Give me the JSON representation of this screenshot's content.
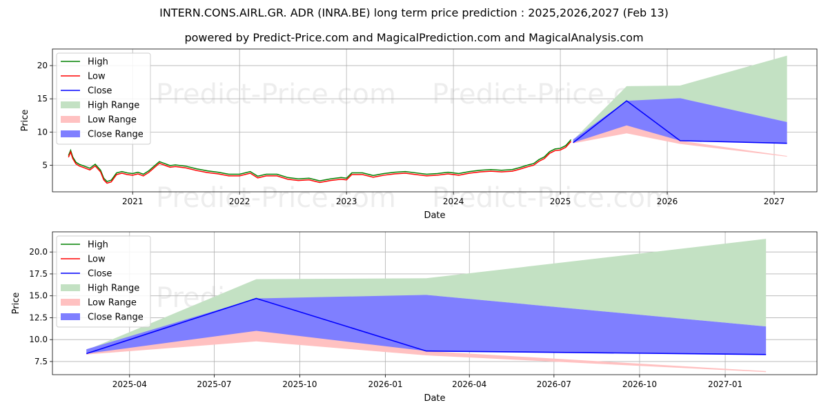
{
  "title": "INTERN.CONS.AIRL.GR. ADR (INRA.BE) long term price prediction : 2025,2026,2027 (Feb 13)",
  "subtitle": "powered by Predict-Price.com and MagicalPrediction.com and MagicalAnalysis.com",
  "watermark": "Predict-Price.com",
  "colors": {
    "high": "#008000",
    "low": "#ff0000",
    "close": "#0000ff",
    "high_range": "#c3e1c3",
    "low_range": "#ffc1c1",
    "close_range": "#7f7fff",
    "grid": "#b0b0b0"
  },
  "chart_data": [
    {
      "type": "line",
      "title": "",
      "xlabel": "Date",
      "ylabel": "Price",
      "xlim": [
        2020.25,
        2027.4
      ],
      "ylim": [
        1.0,
        22.5
      ],
      "xticks": [
        {
          "value": 2021,
          "label": "2021"
        },
        {
          "value": 2022,
          "label": "2022"
        },
        {
          "value": 2023,
          "label": "2023"
        },
        {
          "value": 2024,
          "label": "2024"
        },
        {
          "value": 2025,
          "label": "2025"
        },
        {
          "value": 2026,
          "label": "2026"
        },
        {
          "value": 2027,
          "label": "2027"
        }
      ],
      "yticks": [
        {
          "value": 5,
          "label": "5"
        },
        {
          "value": 10,
          "label": "10"
        },
        {
          "value": 15,
          "label": "15"
        },
        {
          "value": 20,
          "label": "20"
        }
      ],
      "grid": true,
      "legend": [
        "High",
        "Low",
        "Close",
        "High Range",
        "Low Range",
        "Close Range"
      ],
      "legend_position": "top-left",
      "history": {
        "x": [
          2020.4,
          2020.42,
          2020.44,
          2020.47,
          2020.5,
          2020.55,
          2020.6,
          2020.65,
          2020.7,
          2020.73,
          2020.76,
          2020.8,
          2020.85,
          2020.9,
          2020.95,
          2021.0,
          2021.05,
          2021.1,
          2021.15,
          2021.2,
          2021.25,
          2021.3,
          2021.35,
          2021.4,
          2021.5,
          2021.6,
          2021.7,
          2021.8,
          2021.9,
          2022.0,
          2022.1,
          2022.17,
          2022.25,
          2022.35,
          2022.45,
          2022.55,
          2022.65,
          2022.75,
          2022.85,
          2022.95,
          2023.0,
          2023.05,
          2023.15,
          2023.25,
          2023.35,
          2023.45,
          2023.55,
          2023.65,
          2023.75,
          2023.85,
          2023.95,
          2024.05,
          2024.15,
          2024.25,
          2024.35,
          2024.45,
          2024.55,
          2024.62,
          2024.7,
          2024.75,
          2024.8,
          2024.85,
          2024.9,
          2024.95,
          2025.0,
          2025.05,
          2025.1
        ],
        "close": [
          6.2,
          7.0,
          6.0,
          5.2,
          4.9,
          4.6,
          4.3,
          4.9,
          4.0,
          2.8,
          2.3,
          2.5,
          3.6,
          3.8,
          3.6,
          3.5,
          3.7,
          3.4,
          3.9,
          4.6,
          5.3,
          5.0,
          4.7,
          4.8,
          4.6,
          4.2,
          3.9,
          3.7,
          3.4,
          3.4,
          3.8,
          3.1,
          3.4,
          3.4,
          2.9,
          2.7,
          2.8,
          2.4,
          2.7,
          2.9,
          2.8,
          3.6,
          3.6,
          3.2,
          3.5,
          3.7,
          3.8,
          3.6,
          3.4,
          3.5,
          3.7,
          3.5,
          3.8,
          4.0,
          4.1,
          4.0,
          4.1,
          4.4,
          4.8,
          5.0,
          5.6,
          6.0,
          6.8,
          7.2,
          7.3,
          7.7,
          8.6
        ]
      },
      "forecast": {
        "x": [
          2025.12,
          2025.62,
          2026.12,
          2027.12
        ],
        "close": [
          8.4,
          14.7,
          8.7,
          8.3
        ],
        "high_range": [
          [
            8.8,
            8.6
          ],
          [
            16.9,
            14.6
          ],
          [
            17.0,
            15.1
          ],
          [
            21.5,
            11.5
          ]
        ],
        "low_range": [
          [
            8.4,
            8.3
          ],
          [
            11.7,
            9.8
          ],
          [
            8.7,
            8.2
          ],
          [
            6.4,
            6.3
          ]
        ],
        "close_range": [
          [
            8.9,
            8.4
          ],
          [
            14.7,
            11.0
          ],
          [
            15.1,
            8.7
          ],
          [
            11.5,
            8.3
          ]
        ]
      }
    },
    {
      "type": "line",
      "title": "",
      "xlabel": "Date",
      "ylabel": "Price",
      "xlim": [
        2025.02,
        2027.27
      ],
      "ylim": [
        6.0,
        22.3
      ],
      "xticks": [
        {
          "value": 2025.247,
          "label": "2025-04"
        },
        {
          "value": 2025.496,
          "label": "2025-07"
        },
        {
          "value": 2025.748,
          "label": "2025-10"
        },
        {
          "value": 2026.0,
          "label": "2026-01"
        },
        {
          "value": 2026.247,
          "label": "2026-04"
        },
        {
          "value": 2026.496,
          "label": "2026-07"
        },
        {
          "value": 2026.748,
          "label": "2026-10"
        },
        {
          "value": 2027.0,
          "label": "2027-01"
        }
      ],
      "yticks": [
        {
          "value": 7.5,
          "label": "7.5"
        },
        {
          "value": 10.0,
          "label": "10.0"
        },
        {
          "value": 12.5,
          "label": "12.5"
        },
        {
          "value": 15.0,
          "label": "15.0"
        },
        {
          "value": 17.5,
          "label": "17.5"
        },
        {
          "value": 20.0,
          "label": "20.0"
        }
      ],
      "grid": true,
      "legend": [
        "High",
        "Low",
        "Close",
        "High Range",
        "Low Range",
        "Close Range"
      ],
      "legend_position": "top-left",
      "forecast": {
        "x": [
          2025.12,
          2025.62,
          2026.12,
          2027.12
        ],
        "close": [
          8.4,
          14.7,
          8.7,
          8.3
        ],
        "high_range": [
          [
            8.8,
            8.6
          ],
          [
            16.9,
            14.6
          ],
          [
            17.0,
            15.1
          ],
          [
            21.5,
            11.5
          ]
        ],
        "low_range": [
          [
            8.4,
            8.3
          ],
          [
            11.7,
            9.8
          ],
          [
            8.7,
            8.2
          ],
          [
            6.4,
            6.3
          ]
        ],
        "close_range": [
          [
            8.9,
            8.4
          ],
          [
            14.7,
            11.0
          ],
          [
            15.1,
            8.7
          ],
          [
            11.5,
            8.3
          ]
        ]
      }
    }
  ]
}
